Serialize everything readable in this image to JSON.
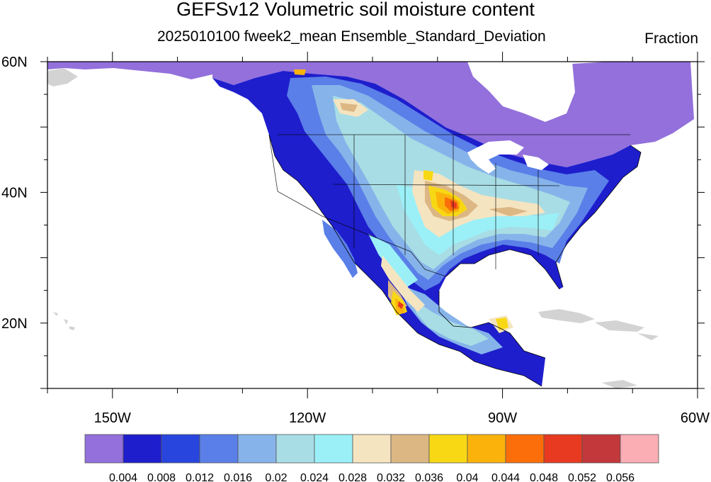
{
  "title": "GEFSv12 Volumetric soil moisture content",
  "subtitle": "2025010100 fweek2_mean Ensemble_Standard_Deviation",
  "units": "Fraction",
  "lat_labels": [
    "60N",
    "40N",
    "20N"
  ],
  "lon_labels": [
    "150W",
    "120W",
    "90W",
    "60W"
  ],
  "colorbar": {
    "colors": [
      "#9370db",
      "#1e1ecd",
      "#2846de",
      "#5a7fe8",
      "#86b4ea",
      "#a8dde5",
      "#9bf0f8",
      "#f5e4c0",
      "#dcb784",
      "#f8d814",
      "#fbb30b",
      "#fc6e0a",
      "#e73a20",
      "#c2383b",
      "#fbaeb4"
    ],
    "labels": [
      "0.004",
      "0.008",
      "0.012",
      "0.016",
      "0.02",
      "0.024",
      "0.028",
      "0.032",
      "0.036",
      "0.04",
      "0.044",
      "0.048",
      "0.052",
      "0.056"
    ]
  },
  "land_color": "#d3d3d3",
  "ocean_color": "#ffffff",
  "map_extent": {
    "lon_min": -160,
    "lon_max": -60,
    "lat_min": 10,
    "lat_max": 60
  }
}
